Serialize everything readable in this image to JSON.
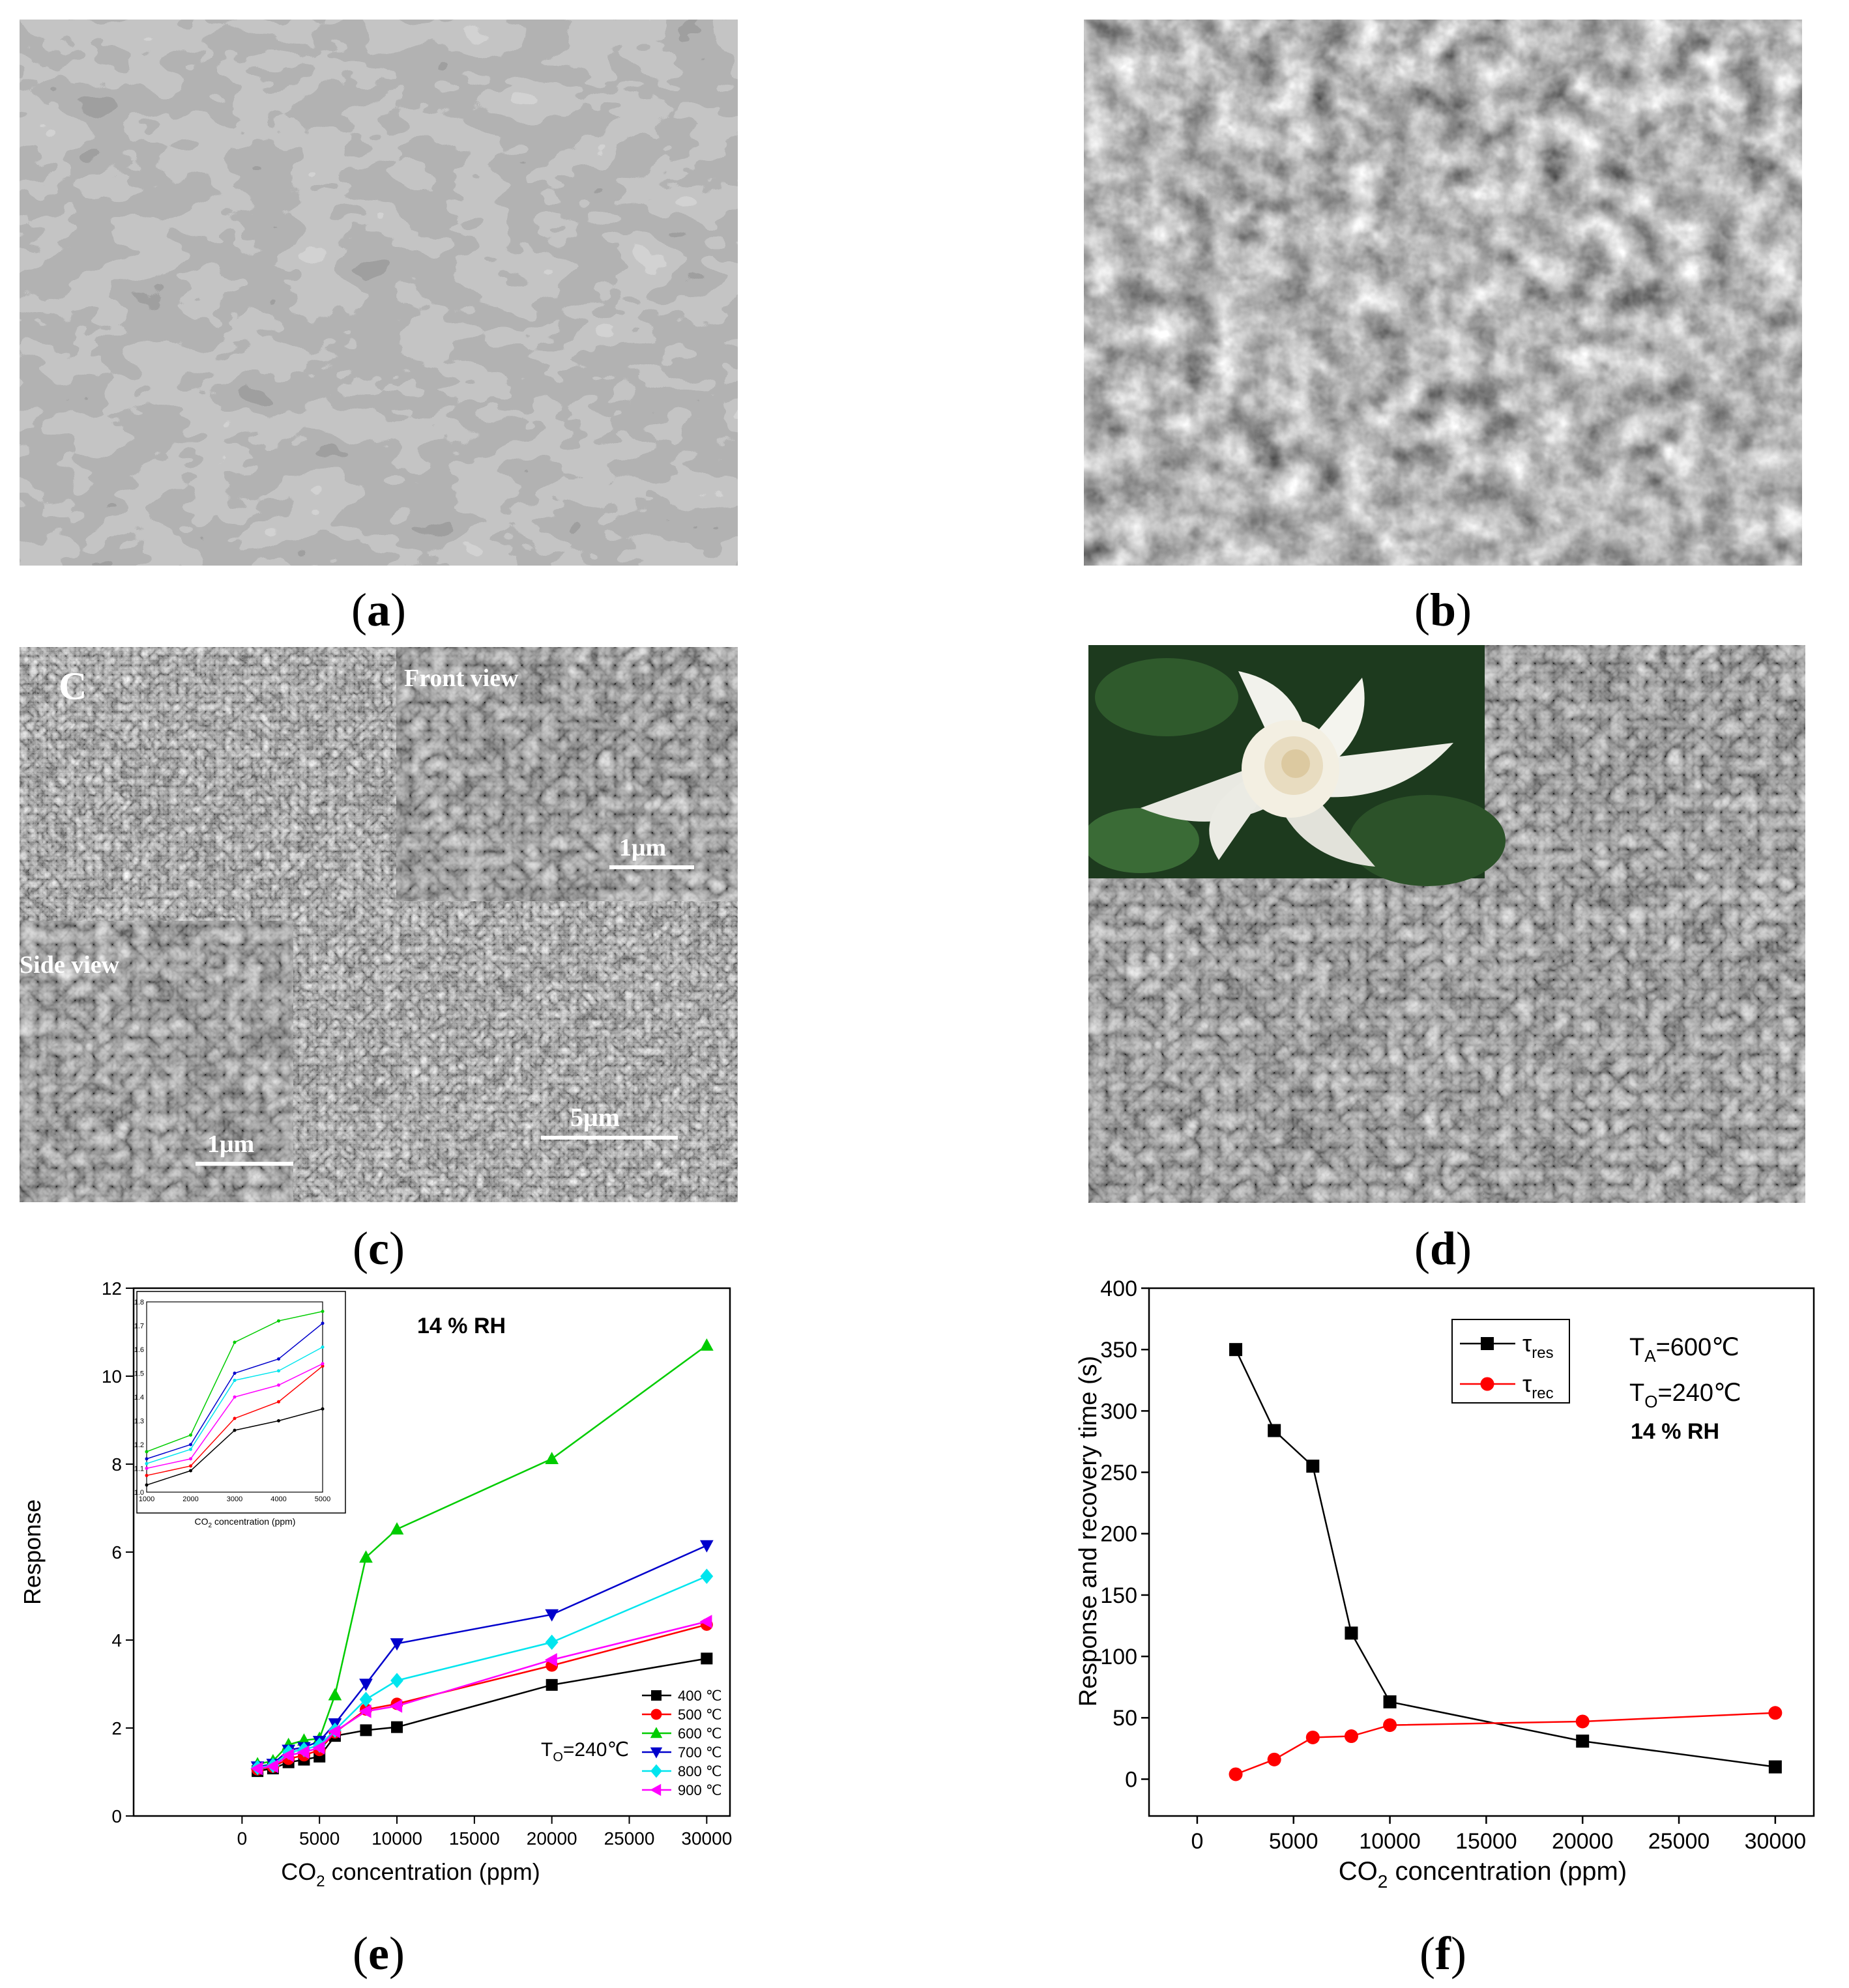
{
  "panel_labels": {
    "a": "a",
    "b": "b",
    "c": "c",
    "d": "d",
    "e": "e",
    "f": "f"
  },
  "sem_c": {
    "letter": "C",
    "front_view": "Front view",
    "side_view": "Side view",
    "scale_inset_front": "1μm",
    "scale_inset_side": "1μm",
    "scale_main": "5μm"
  },
  "chart_data": [
    {
      "id": "e",
      "type": "line",
      "ylabel": "Response",
      "xlabel_main": "CO",
      "xlabel_sub": "2",
      "xlabel_tail": " concentration (ppm)",
      "annotation_rh": "14 % RH",
      "annotation_to_main": "T",
      "annotation_to_sub": "O",
      "annotation_to_tail": "=240℃",
      "xlim": [
        -7000,
        31500
      ],
      "ylim": [
        0,
        12
      ],
      "xticks": [
        0,
        5000,
        10000,
        15000,
        20000,
        25000,
        30000
      ],
      "yticks": [
        0,
        2,
        4,
        6,
        8,
        10,
        12
      ],
      "x": [
        1000,
        2000,
        3000,
        4000,
        5000,
        6000,
        8000,
        10000,
        20000,
        30000
      ],
      "series": [
        {
          "name": "400 ℃",
          "color": "#000000",
          "marker": "square",
          "values": [
            1.02,
            1.08,
            1.22,
            1.28,
            1.35,
            1.82,
            1.95,
            2.02,
            2.98,
            3.58
          ]
        },
        {
          "name": "500 ℃",
          "color": "#ff0000",
          "marker": "circle",
          "values": [
            1.06,
            1.12,
            1.3,
            1.38,
            1.5,
            1.9,
            2.42,
            2.55,
            3.42,
            4.35
          ]
        },
        {
          "name": "600 ℃",
          "color": "#00cc00",
          "marker": "triangle-up",
          "values": [
            1.18,
            1.25,
            1.62,
            1.72,
            1.76,
            2.75,
            5.88,
            6.52,
            8.12,
            10.7
          ]
        },
        {
          "name": "700 ℃",
          "color": "#0000cc",
          "marker": "triangle-down",
          "values": [
            1.12,
            1.18,
            1.5,
            1.56,
            1.7,
            2.1,
            3.0,
            3.92,
            4.58,
            6.15
          ]
        },
        {
          "name": "800 ℃",
          "color": "#00e5ee",
          "marker": "diamond",
          "values": [
            1.1,
            1.15,
            1.45,
            1.51,
            1.61,
            1.95,
            2.65,
            3.08,
            3.95,
            5.45
          ]
        },
        {
          "name": "900 ℃",
          "color": "#ff00ff",
          "marker": "triangle-left",
          "values": [
            1.08,
            1.13,
            1.38,
            1.45,
            1.55,
            1.92,
            2.38,
            2.5,
            3.55,
            4.42
          ]
        }
      ],
      "inset": {
        "xlabel_main": "CO",
        "xlabel_sub": "2",
        "xlabel_tail": " concentration (ppm)",
        "xlim": [
          1000,
          5000
        ],
        "ylim": [
          1.0,
          1.8
        ],
        "xticks": [
          1000,
          2000,
          3000,
          4000,
          5000
        ],
        "yticks": [
          1.0,
          1.1,
          1.2,
          1.3,
          1.4,
          1.5,
          1.6,
          1.7,
          1.8
        ],
        "x": [
          1000,
          2000,
          3000,
          4000,
          5000
        ],
        "series": [
          {
            "color": "#000000",
            "values": [
              1.03,
              1.09,
              1.26,
              1.3,
              1.35
            ]
          },
          {
            "color": "#ff0000",
            "values": [
              1.07,
              1.11,
              1.31,
              1.38,
              1.53
            ]
          },
          {
            "color": "#00cc00",
            "values": [
              1.17,
              1.24,
              1.63,
              1.72,
              1.76
            ]
          },
          {
            "color": "#0000cc",
            "values": [
              1.14,
              1.2,
              1.5,
              1.56,
              1.71
            ]
          },
          {
            "color": "#00e5ee",
            "values": [
              1.12,
              1.18,
              1.47,
              1.51,
              1.61
            ]
          },
          {
            "color": "#ff00ff",
            "values": [
              1.1,
              1.14,
              1.4,
              1.45,
              1.54
            ]
          }
        ]
      }
    },
    {
      "id": "f",
      "type": "line",
      "ylabel": "Response and recovery time (s)",
      "xlabel_main": "CO",
      "xlabel_sub": "2",
      "xlabel_tail": " concentration (ppm)",
      "annotation_ta_main": "T",
      "annotation_ta_sub": "A",
      "annotation_ta_tail": "=600℃",
      "annotation_to_main": "T",
      "annotation_to_sub": "O",
      "annotation_to_tail": "=240℃",
      "annotation_rh": "14 % RH",
      "xlim": [
        -2500,
        32000
      ],
      "ylim": [
        -30,
        400
      ],
      "xticks": [
        0,
        5000,
        10000,
        15000,
        20000,
        25000,
        30000
      ],
      "yticks": [
        0,
        50,
        100,
        150,
        200,
        250,
        300,
        350,
        400
      ],
      "x": [
        2000,
        4000,
        6000,
        8000,
        10000,
        20000,
        30000
      ],
      "series": [
        {
          "name_main": "τ",
          "name_sub": "res",
          "color": "#000000",
          "marker": "square",
          "values": [
            350,
            284,
            255,
            119,
            63,
            31,
            10
          ]
        },
        {
          "name_main": "τ",
          "name_sub": "rec",
          "color": "#ff0000",
          "marker": "circle",
          "values": [
            4,
            16,
            34,
            35,
            44,
            47,
            54
          ]
        }
      ]
    }
  ]
}
